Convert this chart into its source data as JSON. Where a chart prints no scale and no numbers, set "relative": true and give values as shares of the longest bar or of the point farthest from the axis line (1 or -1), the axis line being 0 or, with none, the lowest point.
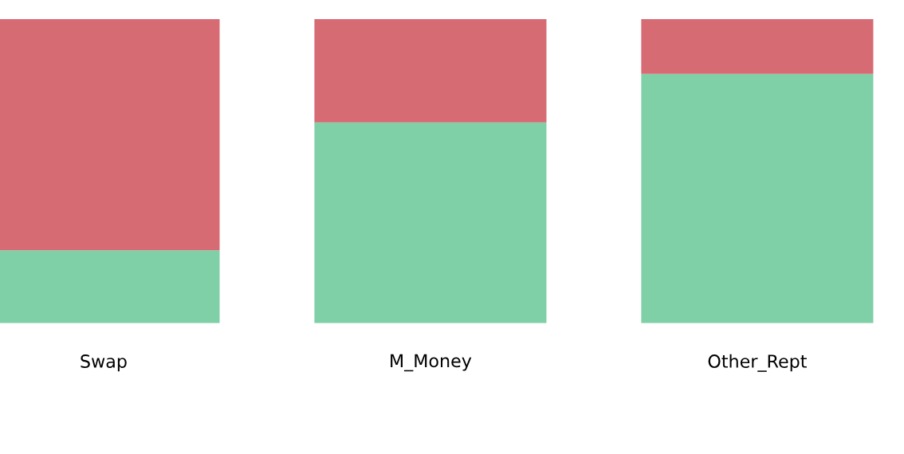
{
  "chart_data": {
    "type": "bar",
    "stacked": true,
    "relative": true,
    "categories": [
      "Swap",
      "M_Money",
      "Other_Rept"
    ],
    "series": [
      {
        "color": "#7fcfa7",
        "values": [
          0.24,
          0.66,
          0.82
        ]
      },
      {
        "color": "#d76b73",
        "values": [
          0.76,
          0.34,
          0.18
        ]
      }
    ]
  }
}
